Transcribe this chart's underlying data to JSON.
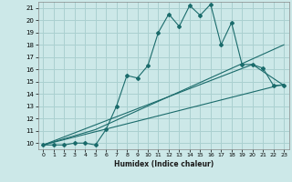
{
  "xlabel": "Humidex (Indice chaleur)",
  "bg_color": "#cce8e8",
  "grid_color": "#aad0d0",
  "line_color": "#1a6b6b",
  "xlim": [
    -0.5,
    23.5
  ],
  "ylim": [
    9.5,
    21.5
  ],
  "xticks": [
    0,
    1,
    2,
    3,
    4,
    5,
    6,
    7,
    8,
    9,
    10,
    11,
    12,
    13,
    14,
    15,
    16,
    17,
    18,
    19,
    20,
    21,
    22,
    23
  ],
  "yticks": [
    10,
    11,
    12,
    13,
    14,
    15,
    16,
    17,
    18,
    19,
    20,
    21
  ],
  "line1_x": [
    0,
    1,
    2,
    3,
    4,
    5,
    6,
    7,
    8,
    9,
    10,
    11,
    12,
    13,
    14,
    15,
    16,
    17,
    18,
    19,
    20,
    21,
    22,
    23
  ],
  "line1_y": [
    9.85,
    9.85,
    9.85,
    10.0,
    10.0,
    9.85,
    11.1,
    13.0,
    15.5,
    15.3,
    16.3,
    19.0,
    20.5,
    19.5,
    21.2,
    20.4,
    21.3,
    18.0,
    19.8,
    16.4,
    16.4,
    16.1,
    14.7,
    14.7
  ],
  "line2_x": [
    0,
    23
  ],
  "line2_y": [
    9.85,
    14.8
  ],
  "line3_x": [
    0,
    20,
    23
  ],
  "line3_y": [
    9.85,
    16.4,
    14.7
  ],
  "line4_x": [
    0,
    5,
    23
  ],
  "line4_y": [
    9.85,
    11.1,
    18.0
  ]
}
